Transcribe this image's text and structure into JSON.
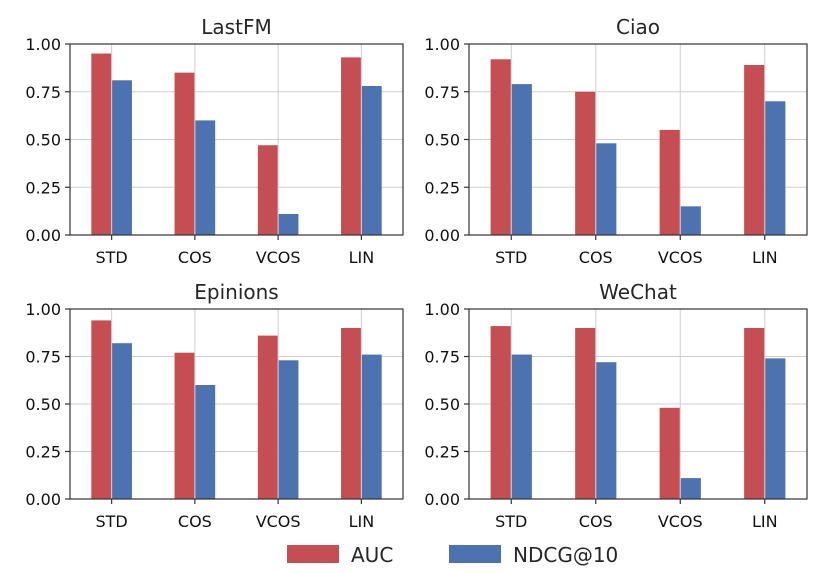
{
  "chart_data": [
    {
      "type": "bar",
      "title": "LastFM",
      "categories": [
        "STD",
        "COS",
        "VCOS",
        "LIN"
      ],
      "series": [
        {
          "name": "AUC",
          "values": [
            0.95,
            0.85,
            0.47,
            0.93
          ]
        },
        {
          "name": "NDCG@10",
          "values": [
            0.81,
            0.6,
            0.11,
            0.78
          ]
        }
      ],
      "ylim": [
        0,
        1
      ],
      "yticks": [
        "0.00",
        "0.25",
        "0.50",
        "0.75",
        "1.00"
      ],
      "grid": true
    },
    {
      "type": "bar",
      "title": "Ciao",
      "categories": [
        "STD",
        "COS",
        "VCOS",
        "LIN"
      ],
      "series": [
        {
          "name": "AUC",
          "values": [
            0.92,
            0.75,
            0.55,
            0.89
          ]
        },
        {
          "name": "NDCG@10",
          "values": [
            0.79,
            0.48,
            0.15,
            0.7
          ]
        }
      ],
      "ylim": [
        0,
        1
      ],
      "yticks": [
        "0.00",
        "0.25",
        "0.50",
        "0.75",
        "1.00"
      ],
      "grid": true
    },
    {
      "type": "bar",
      "title": "Epinions",
      "categories": [
        "STD",
        "COS",
        "VCOS",
        "LIN"
      ],
      "series": [
        {
          "name": "AUC",
          "values": [
            0.94,
            0.77,
            0.86,
            0.9
          ]
        },
        {
          "name": "NDCG@10",
          "values": [
            0.82,
            0.6,
            0.73,
            0.76
          ]
        }
      ],
      "ylim": [
        0,
        1
      ],
      "yticks": [
        "0.00",
        "0.25",
        "0.50",
        "0.75",
        "1.00"
      ],
      "grid": true
    },
    {
      "type": "bar",
      "title": "WeChat",
      "categories": [
        "STD",
        "COS",
        "VCOS",
        "LIN"
      ],
      "series": [
        {
          "name": "AUC",
          "values": [
            0.91,
            0.9,
            0.48,
            0.9
          ]
        },
        {
          "name": "NDCG@10",
          "values": [
            0.76,
            0.72,
            0.11,
            0.74
          ]
        }
      ],
      "ylim": [
        0,
        1
      ],
      "yticks": [
        "0.00",
        "0.25",
        "0.50",
        "0.75",
        "1.00"
      ],
      "grid": true
    }
  ],
  "legend": {
    "placement": "bottom-center",
    "items": [
      {
        "label": "AUC",
        "color": "#c44e52"
      },
      {
        "label": "NDCG@10",
        "color": "#4c72b0"
      }
    ]
  }
}
